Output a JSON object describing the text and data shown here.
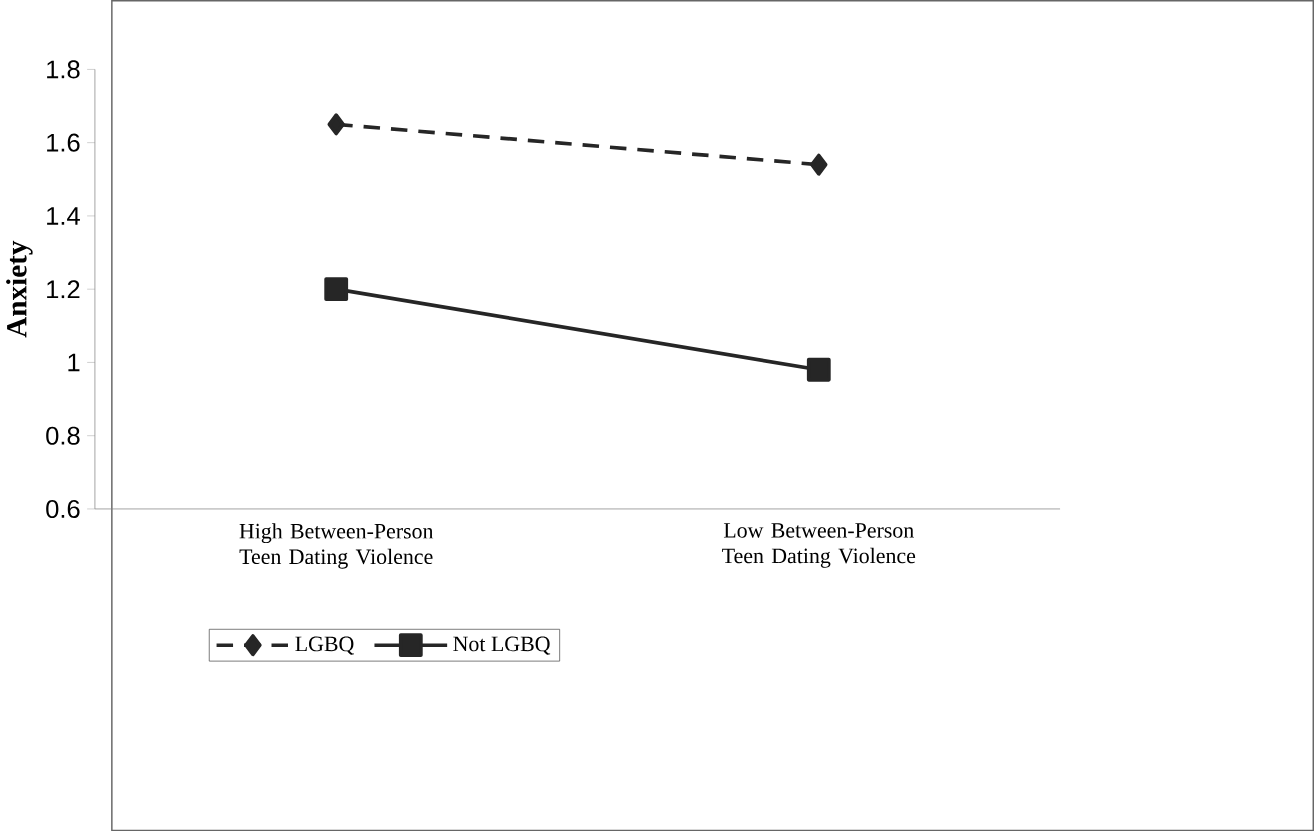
{
  "chart_data": {
    "type": "line",
    "ylabel": "Anxiety",
    "categories": [
      "High Between-Person Teen Dating Violence",
      "Low Between-Person Teen Dating Violence"
    ],
    "series": [
      {
        "name": "LGBQ",
        "color": "#262626",
        "values": [
          1.65,
          1.54
        ],
        "marker": "diamond",
        "line_style": "dashed"
      },
      {
        "name": "Not LGBQ",
        "color": "#262626",
        "values": [
          1.2,
          0.98
        ],
        "marker": "square",
        "line_style": "solid"
      }
    ],
    "ylim": [
      0.6,
      1.8
    ],
    "yticks": [
      0.6,
      0.8,
      1,
      1.2,
      1.4,
      1.6,
      1.8
    ],
    "grid": false,
    "legend": "bottom"
  }
}
